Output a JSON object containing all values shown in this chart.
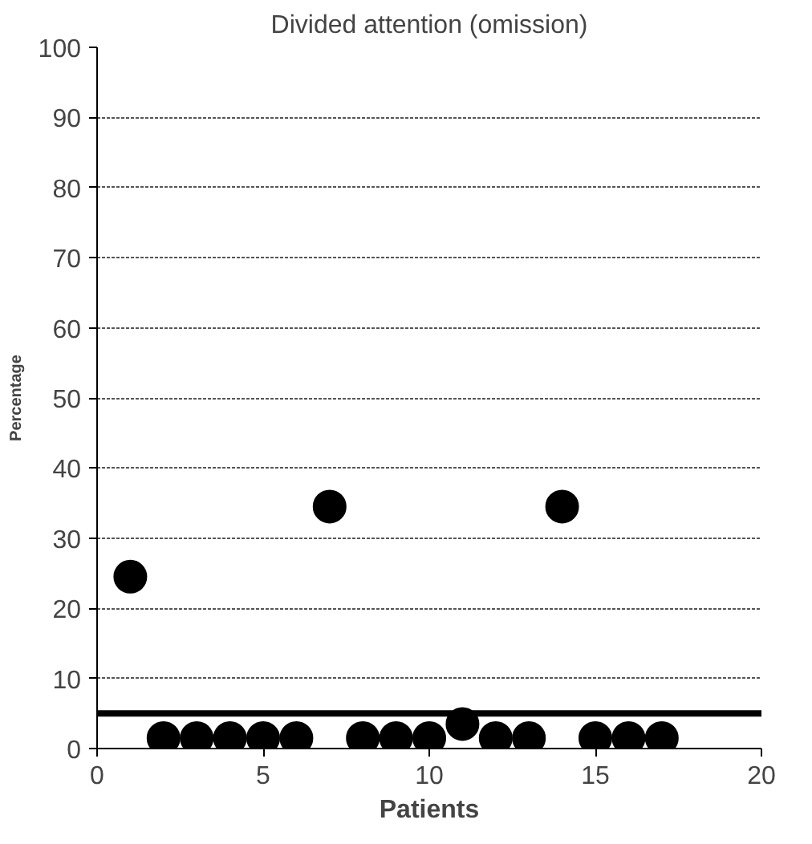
{
  "chart_data": {
    "type": "scatter",
    "title": "Divided attention (omission)",
    "xlabel": "Patients",
    "ylabel": "Percentage",
    "x": [
      1,
      2,
      3,
      4,
      5,
      6,
      7,
      8,
      9,
      10,
      11,
      12,
      13,
      14,
      15,
      16,
      17
    ],
    "series": [
      {
        "color": "#000000",
        "values": [
          24.5,
          1.5,
          1.5,
          1.5,
          1.5,
          1.5,
          34.5,
          1.5,
          1.5,
          1.5,
          3.5,
          1.5,
          1.5,
          34.5,
          1.5,
          1.5,
          1.5
        ]
      }
    ],
    "xlim": [
      0,
      20
    ],
    "xticks": [
      0,
      5,
      10,
      15,
      20
    ],
    "ylim": [
      0,
      100
    ],
    "yticks": [
      0,
      10,
      20,
      30,
      40,
      50,
      60,
      70,
      80,
      90,
      100
    ],
    "grid": "y",
    "marker": "circle",
    "ref_lines": [
      {
        "axis": "y",
        "value": 5,
        "color": "#000000"
      }
    ]
  }
}
